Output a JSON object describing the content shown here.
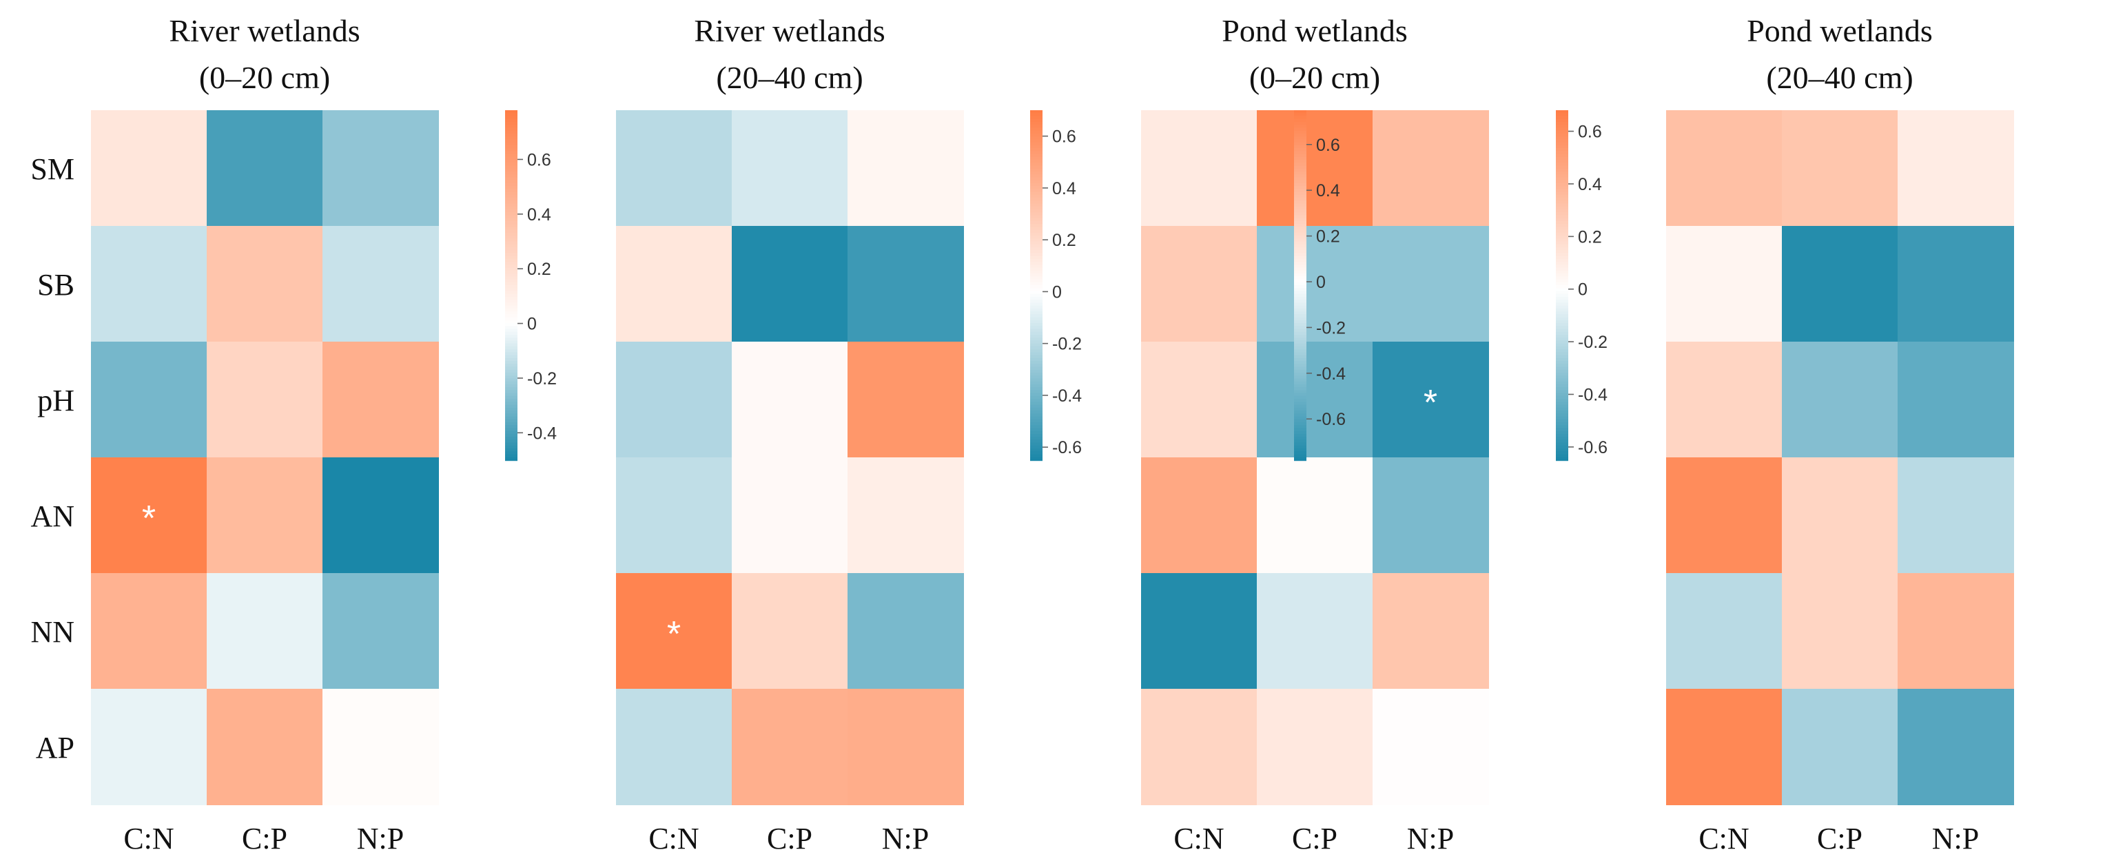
{
  "chart_data": [
    {
      "type": "heatmap",
      "title": "River wetlands",
      "subtitle": "(0–20 cm)",
      "rows": [
        "SM",
        "SB",
        "pH",
        "AN",
        "NN",
        "AP"
      ],
      "columns": [
        "C:N",
        "C:P",
        "N:P"
      ],
      "values": [
        [
          0.15,
          -0.4,
          -0.24
        ],
        [
          -0.12,
          0.35,
          -0.12
        ],
        [
          -0.3,
          0.25,
          0.48
        ],
        [
          0.75,
          0.41,
          -0.5
        ],
        [
          0.46,
          -0.05,
          -0.28
        ],
        [
          -0.05,
          0.47,
          0.02
        ]
      ],
      "annotations": [
        {
          "row": "AN",
          "column": "C:N",
          "text": "*"
        }
      ],
      "colorbar": {
        "min": -0.5,
        "max": 0.78,
        "ticks": [
          "-0.4",
          "-0.2",
          "0",
          "0.2",
          "0.4",
          "0.6"
        ],
        "tick_values": [
          -0.4,
          -0.2,
          0,
          0.2,
          0.4,
          0.6
        ]
      }
    },
    {
      "type": "heatmap",
      "title": "River wetlands",
      "subtitle": "(20–40 cm)",
      "rows": [
        "SM",
        "SB",
        "pH",
        "AN",
        "NN",
        "AP"
      ],
      "columns": [
        "C:N",
        "C:P",
        "N:P"
      ],
      "values": [
        [
          -0.2,
          -0.12,
          0.05
        ],
        [
          0.13,
          -0.63,
          -0.55
        ],
        [
          -0.22,
          0.03,
          0.56
        ],
        [
          -0.18,
          0.03,
          0.09
        ],
        [
          0.66,
          0.21,
          -0.38
        ],
        [
          -0.18,
          0.43,
          0.44
        ]
      ],
      "annotations": [
        {
          "row": "NN",
          "column": "C:N",
          "text": "*"
        }
      ],
      "colorbar": {
        "min": -0.65,
        "max": 0.7,
        "ticks": [
          "-0.6",
          "-0.4",
          "-0.2",
          "0",
          "0.2",
          "0.4",
          "0.6"
        ],
        "tick_values": [
          -0.6,
          -0.4,
          -0.2,
          0,
          0.2,
          0.4,
          0.6
        ]
      }
    },
    {
      "type": "heatmap",
      "title": "Pond wetlands",
      "subtitle": "(0–20 cm)",
      "rows": [
        "SM",
        "SB",
        "pH",
        "AN",
        "NN",
        "AP"
      ],
      "columns": [
        "C:N",
        "C:P",
        "N:P"
      ],
      "values": [
        [
          0.12,
          0.7,
          0.38
        ],
        [
          0.3,
          -0.38,
          -0.38
        ],
        [
          0.2,
          -0.5,
          -0.72
        ],
        [
          0.5,
          0.02,
          -0.45
        ],
        [
          -0.75,
          -0.14,
          0.33
        ],
        [
          0.24,
          0.13,
          0.01
        ]
      ],
      "annotations": [
        {
          "row": "pH",
          "column": "N:P",
          "text": "*"
        }
      ],
      "colorbar": {
        "min": -0.78,
        "max": 0.75,
        "ticks": [
          "-0.6",
          "-0.4",
          "-0.2",
          "0",
          "0.2",
          "0.4",
          "0.6"
        ],
        "tick_values": [
          -0.6,
          -0.4,
          -0.2,
          0,
          0.2,
          0.4,
          0.6
        ]
      }
    },
    {
      "type": "heatmap",
      "title": "Pond wetlands",
      "subtitle": "(20–40 cm)",
      "rows": [
        "SM",
        "SB",
        "pH",
        "AN",
        "NN",
        "AP"
      ],
      "columns": [
        "C:N",
        "C:P",
        "N:P"
      ],
      "values": [
        [
          0.33,
          0.3,
          0.1
        ],
        [
          0.05,
          -0.62,
          -0.55
        ],
        [
          0.22,
          -0.35,
          -0.45
        ],
        [
          0.6,
          0.22,
          -0.2
        ],
        [
          -0.2,
          0.22,
          0.38
        ],
        [
          0.62,
          -0.25,
          -0.48
        ]
      ],
      "annotations": [],
      "colorbar": {
        "min": -0.65,
        "max": 0.68,
        "ticks": [
          "-0.6",
          "-0.4",
          "-0.2",
          "0",
          "0.2",
          "0.4",
          "0.6"
        ],
        "tick_values": [
          -0.6,
          -0.4,
          -0.2,
          0,
          0.2,
          0.4,
          0.6
        ]
      }
    }
  ],
  "colors": {
    "negative": "#1a87a8",
    "neutral": "#ffffff",
    "positive": "#ff7d45",
    "annotation": "#ffffff"
  }
}
